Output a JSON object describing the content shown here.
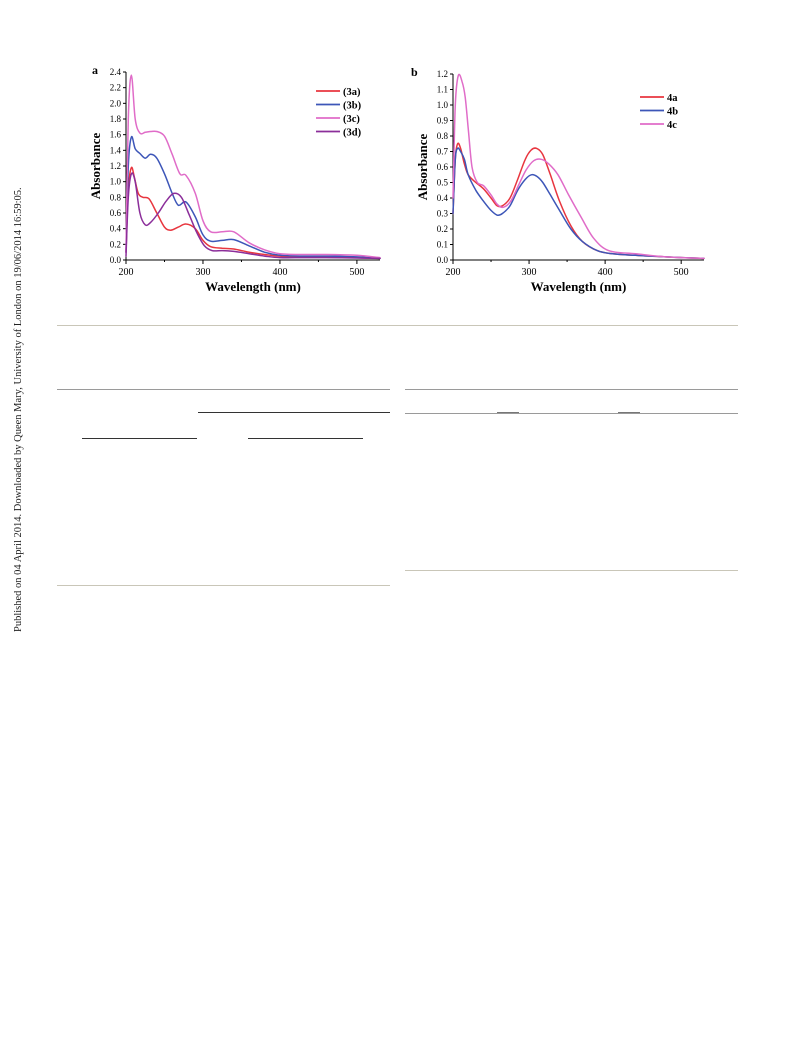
{
  "watermark": "Published on 04 April 2014. Downloaded by Queen Mary, University of London on 19/06/2014 16:59:05.",
  "chart_data": [
    {
      "panel_label": "a",
      "type": "line",
      "xlabel": "Wavelength (nm)",
      "ylabel": "Absorbance",
      "xlim": [
        200,
        530
      ],
      "ylim": [
        0,
        2.4
      ],
      "xticks": [
        200,
        300,
        400,
        500
      ],
      "yticks": [
        0.0,
        0.2,
        0.4,
        0.6,
        0.8,
        1.0,
        1.2,
        1.4,
        1.6,
        1.8,
        2.0,
        2.2,
        2.4
      ],
      "ytick_labels": [
        "0.0",
        "0.2",
        "0.4",
        "0.6",
        "0.8",
        "1.0",
        "1.2",
        "1.4",
        "1.6",
        "1.8",
        "2.0",
        "2.2",
        "2.4"
      ],
      "legend_position": "top-right",
      "grid": false,
      "series": [
        {
          "name": "(3a)",
          "color": "#e8363f",
          "x": [
            200,
            203,
            207,
            211,
            216,
            222,
            230,
            240,
            250,
            258,
            268,
            278,
            290,
            300,
            310,
            325,
            340,
            360,
            380,
            400,
            430,
            460,
            500,
            530
          ],
          "y": [
            0.1,
            0.9,
            1.18,
            1.05,
            0.85,
            0.8,
            0.78,
            0.6,
            0.42,
            0.38,
            0.42,
            0.46,
            0.4,
            0.25,
            0.17,
            0.15,
            0.14,
            0.1,
            0.07,
            0.05,
            0.04,
            0.035,
            0.03,
            0.02
          ]
        },
        {
          "name": "(3b)",
          "color": "#3d56b8",
          "x": [
            200,
            203,
            207,
            212,
            218,
            225,
            232,
            240,
            250,
            260,
            268,
            278,
            290,
            300,
            310,
            325,
            340,
            360,
            380,
            400,
            430,
            460,
            500,
            530
          ],
          "y": [
            0.1,
            1.2,
            1.57,
            1.42,
            1.36,
            1.3,
            1.35,
            1.3,
            1.1,
            0.85,
            0.7,
            0.74,
            0.55,
            0.32,
            0.24,
            0.25,
            0.26,
            0.18,
            0.1,
            0.06,
            0.05,
            0.05,
            0.04,
            0.02
          ]
        },
        {
          "name": "(3c)",
          "color": "#e06cc8",
          "x": [
            200,
            203,
            207,
            212,
            218,
            225,
            232,
            240,
            250,
            260,
            270,
            278,
            290,
            300,
            310,
            325,
            340,
            360,
            380,
            400,
            430,
            460,
            500,
            530
          ],
          "y": [
            0.1,
            1.8,
            2.36,
            1.8,
            1.62,
            1.63,
            1.64,
            1.64,
            1.58,
            1.35,
            1.1,
            1.08,
            0.85,
            0.5,
            0.36,
            0.36,
            0.36,
            0.22,
            0.13,
            0.08,
            0.07,
            0.07,
            0.06,
            0.03
          ]
        },
        {
          "name": "(3d)",
          "color": "#8b2e9a",
          "x": [
            200,
            203,
            207,
            212,
            218,
            225,
            232,
            242,
            252,
            262,
            272,
            282,
            292,
            302,
            312,
            325,
            340,
            360,
            380,
            400,
            430,
            460,
            500,
            530
          ],
          "y": [
            0.05,
            0.8,
            1.1,
            1.0,
            0.6,
            0.45,
            0.48,
            0.6,
            0.75,
            0.85,
            0.8,
            0.58,
            0.35,
            0.18,
            0.12,
            0.12,
            0.11,
            0.08,
            0.05,
            0.03,
            0.03,
            0.03,
            0.025,
            0.02
          ]
        }
      ]
    },
    {
      "panel_label": "b",
      "type": "line",
      "xlabel": "Wavelength (nm)",
      "ylabel": "Absorbance",
      "xlim": [
        200,
        530
      ],
      "ylim": [
        0,
        1.2
      ],
      "xticks": [
        200,
        300,
        400,
        500
      ],
      "yticks": [
        0.0,
        0.1,
        0.2,
        0.3,
        0.4,
        0.5,
        0.6,
        0.7,
        0.8,
        0.9,
        1.0,
        1.1,
        1.2
      ],
      "ytick_labels": [
        "0.0",
        "0.1",
        "0.2",
        "0.3",
        "0.4",
        "0.5",
        "0.6",
        "0.7",
        "0.8",
        "0.9",
        "1.0",
        "1.1",
        "1.2"
      ],
      "legend_position": "top-right",
      "grid": false,
      "series": [
        {
          "name": "4a",
          "color": "#e8363f",
          "x": [
            200,
            203,
            206,
            210,
            215,
            220,
            230,
            240,
            250,
            258,
            265,
            275,
            285,
            295,
            303,
            310,
            318,
            328,
            340,
            355,
            370,
            390,
            410,
            440,
            480,
            530
          ],
          "y": [
            0.3,
            0.65,
            0.75,
            0.72,
            0.62,
            0.55,
            0.5,
            0.46,
            0.4,
            0.35,
            0.35,
            0.4,
            0.52,
            0.65,
            0.71,
            0.72,
            0.68,
            0.55,
            0.38,
            0.22,
            0.12,
            0.06,
            0.04,
            0.03,
            0.02,
            0.01
          ]
        },
        {
          "name": "4b",
          "color": "#3d56b8",
          "x": [
            200,
            203,
            206,
            210,
            215,
            220,
            230,
            240,
            250,
            258,
            265,
            275,
            285,
            295,
            303,
            310,
            318,
            328,
            340,
            355,
            370,
            390,
            410,
            440,
            480,
            530
          ],
          "y": [
            0.3,
            0.65,
            0.72,
            0.7,
            0.65,
            0.55,
            0.45,
            0.38,
            0.32,
            0.29,
            0.3,
            0.35,
            0.45,
            0.52,
            0.55,
            0.54,
            0.5,
            0.42,
            0.32,
            0.2,
            0.12,
            0.06,
            0.04,
            0.03,
            0.02,
            0.01
          ]
        },
        {
          "name": "4c",
          "color": "#e06cc8",
          "x": [
            200,
            203,
            207,
            212,
            216,
            220,
            225,
            232,
            240,
            250,
            258,
            266,
            276,
            286,
            296,
            306,
            316,
            326,
            338,
            352,
            368,
            385,
            405,
            440,
            480,
            530
          ],
          "y": [
            0.4,
            1.0,
            1.19,
            1.15,
            1.05,
            0.85,
            0.6,
            0.5,
            0.48,
            0.42,
            0.36,
            0.34,
            0.38,
            0.48,
            0.58,
            0.64,
            0.65,
            0.62,
            0.55,
            0.42,
            0.28,
            0.14,
            0.06,
            0.04,
            0.02,
            0.01
          ]
        }
      ]
    }
  ]
}
